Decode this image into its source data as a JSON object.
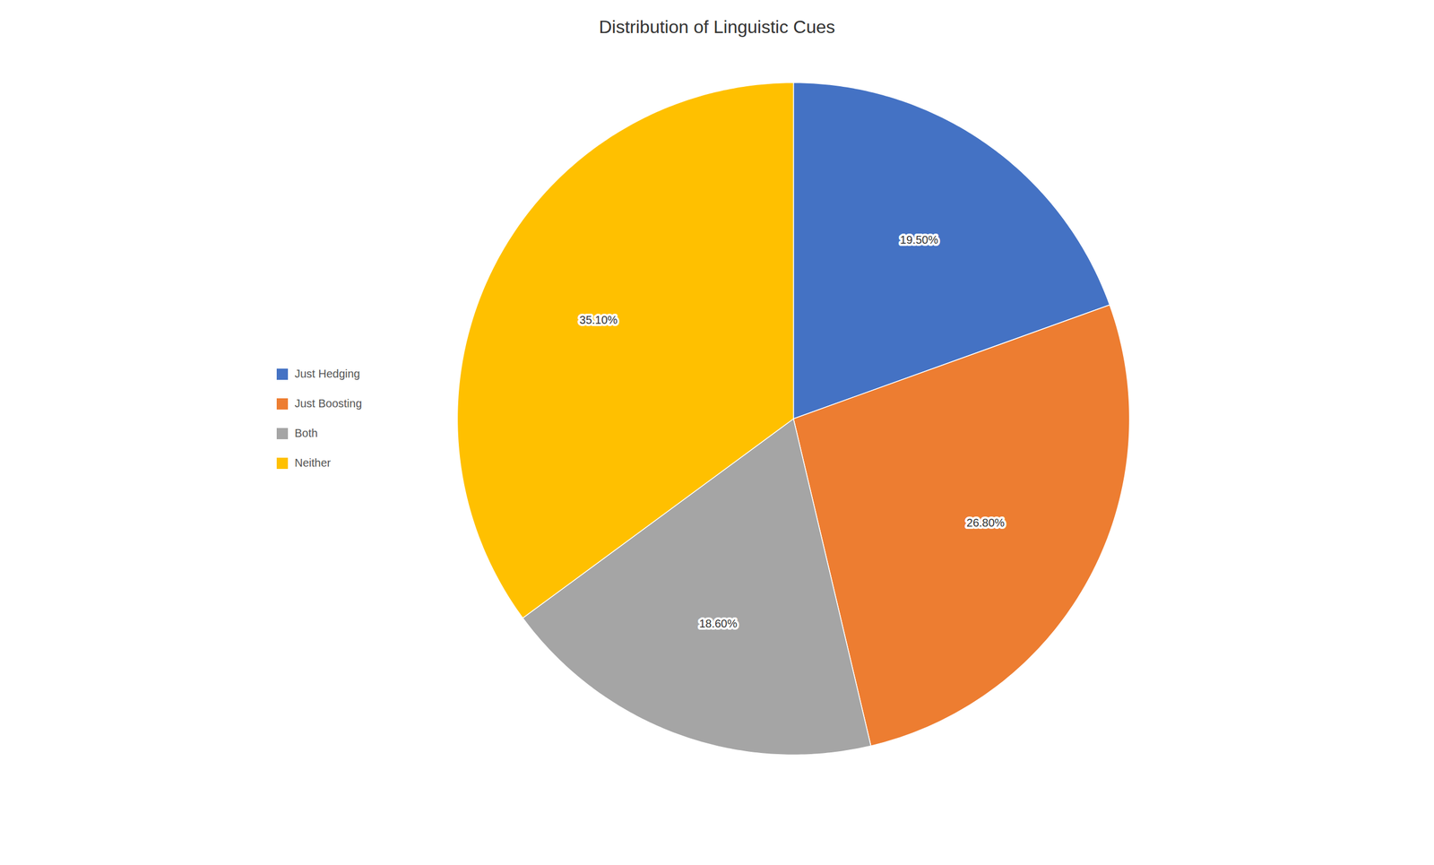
{
  "chart_data": {
    "type": "pie",
    "title": "Distribution of Linguistic Cues",
    "categories": [
      "Just Hedging",
      "Just Boosting",
      "Both",
      "Neither"
    ],
    "values": [
      19.5,
      26.8,
      18.6,
      35.1
    ],
    "value_labels": [
      "19.50%",
      "26.80%",
      "18.60%",
      "35.10%"
    ],
    "colors": [
      "#4472C4",
      "#ED7D31",
      "#A5A5A5",
      "#FFC000"
    ],
    "data_labels": true,
    "legend": "left"
  }
}
